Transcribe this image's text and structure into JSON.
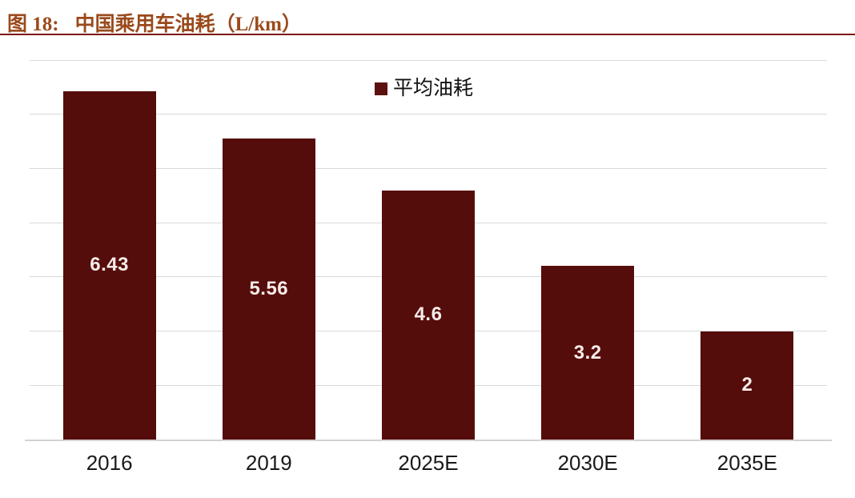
{
  "figure": {
    "label": "图 18:",
    "title": "中国乘用车油耗（L/km）",
    "title_color": "#9A4A1C",
    "rule_color": "#7E140C"
  },
  "chart_data": {
    "type": "bar",
    "title": "中国乘用车油耗（L/km）",
    "categories": [
      "2016",
      "2019",
      "2025E",
      "2030E",
      "2035E"
    ],
    "series": [
      {
        "name": "平均油耗",
        "values": [
          6.43,
          5.56,
          4.6,
          3.2,
          2
        ]
      }
    ],
    "value_labels": [
      "6.43",
      "5.56",
      "4.6",
      "3.2",
      "2"
    ],
    "xlabel": "",
    "ylabel": "",
    "ylim": [
      0,
      7
    ],
    "grid": true,
    "grid_step": 1,
    "gridline_color": "#D9D9D9",
    "legend_position": "top-center",
    "bar_color": "#550D0B",
    "value_label_color": "#F7ECE9",
    "axis_label_color": "#1A1A1A"
  },
  "legend": {
    "marker_color": "#5C1110",
    "label": "平均油耗"
  }
}
